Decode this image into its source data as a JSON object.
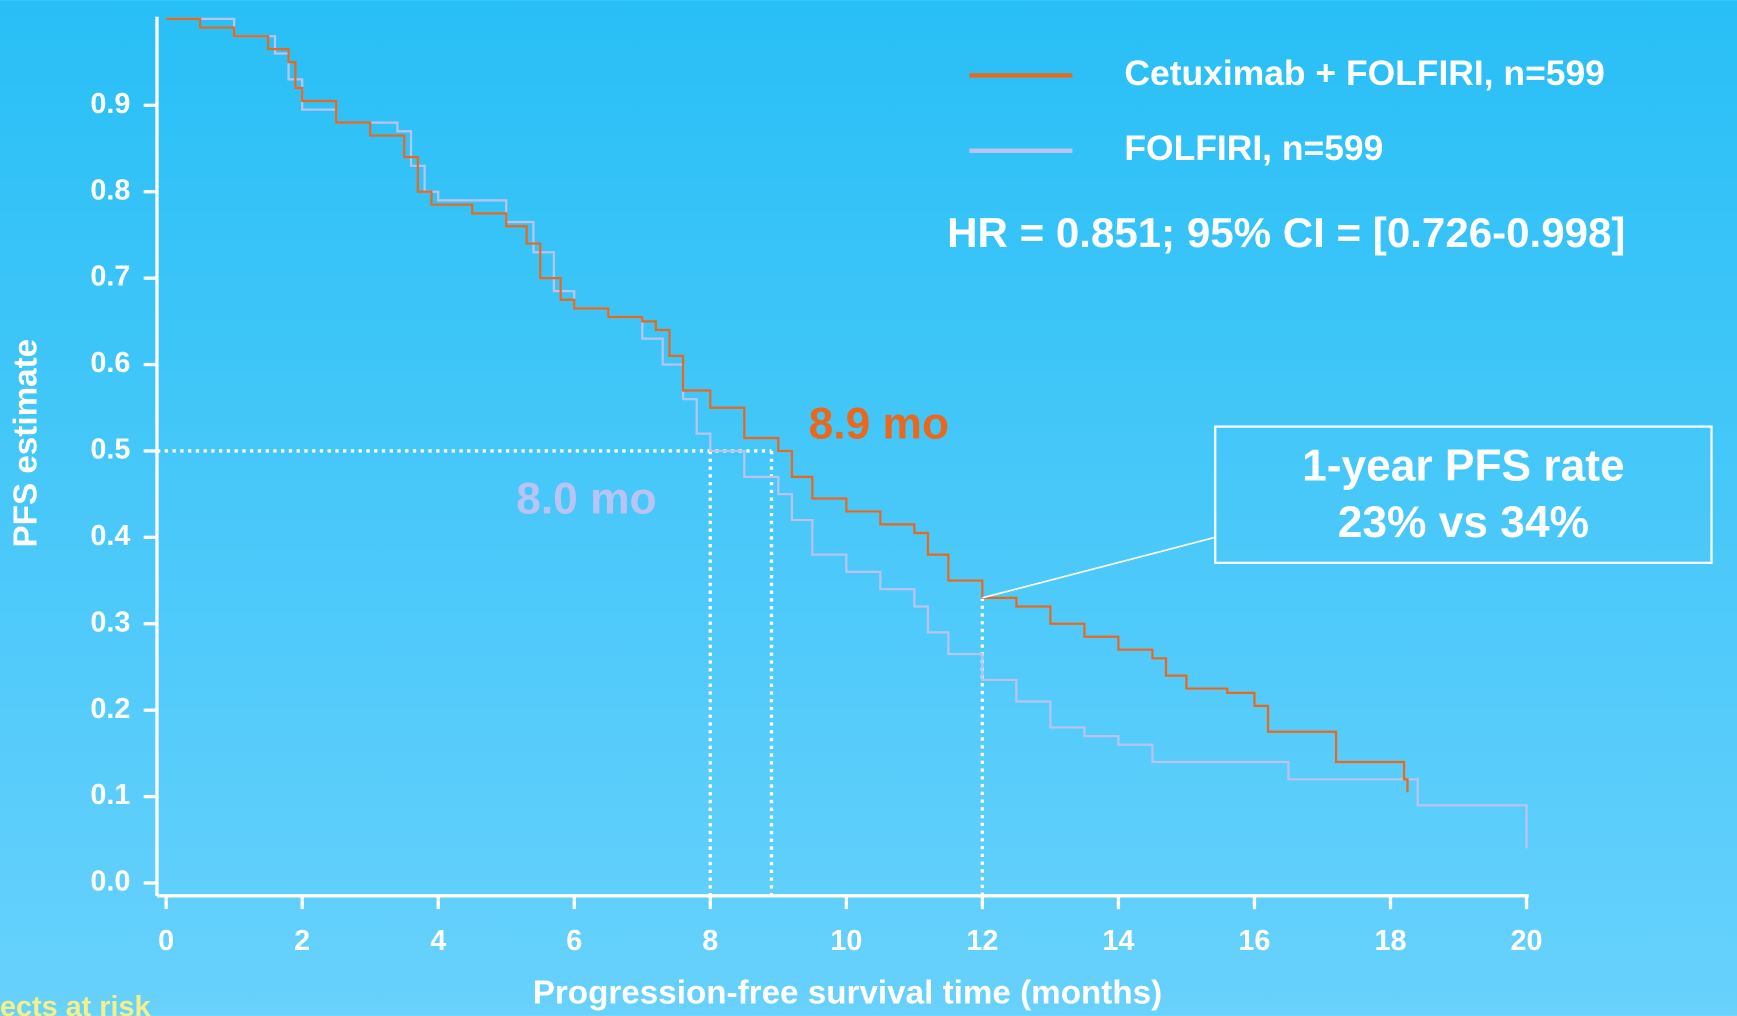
{
  "chart_data": {
    "type": "line",
    "step": true,
    "xlabel": "Progression-free survival time (months)",
    "ylabel": "PFS estimate",
    "xlim": [
      -0.2,
      20
    ],
    "ylim": [
      -0.02,
      1.0
    ],
    "xticks": [
      0,
      2,
      4,
      6,
      8,
      10,
      12,
      14,
      16,
      18,
      20
    ],
    "yticks": [
      {
        "value": 0,
        "label": "0.0"
      },
      0.1,
      0.2,
      0.3,
      0.4,
      0.5,
      0.6,
      0.7,
      0.8,
      0.9
    ],
    "legend": "upper right",
    "series": [
      {
        "name": "Cetuximab + FOLFIRI, n=599",
        "color": "#e8691e",
        "x": [
          0,
          0.5,
          1,
          1.5,
          1.8,
          1.9,
          2,
          2.5,
          3,
          3.5,
          3.7,
          3.9,
          4.5,
          5,
          5.3,
          5.5,
          5.8,
          6,
          6.5,
          7,
          7.2,
          7.4,
          7.6,
          8,
          8.5,
          9,
          9.2,
          9.5,
          10,
          10.5,
          11,
          11.2,
          11.5,
          12,
          12.5,
          13,
          13.5,
          14,
          14.5,
          14.7,
          15,
          15.6,
          16,
          16.2,
          17.2,
          18.2,
          18.25
        ],
        "values": [
          1.0,
          0.99,
          0.98,
          0.965,
          0.95,
          0.92,
          0.905,
          0.88,
          0.865,
          0.84,
          0.8,
          0.785,
          0.775,
          0.76,
          0.74,
          0.7,
          0.675,
          0.665,
          0.655,
          0.65,
          0.64,
          0.61,
          0.57,
          0.55,
          0.515,
          0.5,
          0.47,
          0.445,
          0.43,
          0.415,
          0.405,
          0.38,
          0.35,
          0.33,
          0.32,
          0.3,
          0.285,
          0.27,
          0.26,
          0.24,
          0.225,
          0.22,
          0.205,
          0.175,
          0.14,
          0.12,
          0.105
        ]
      },
      {
        "name": "FOLFIRI, n=599",
        "color": "#b9c4f5",
        "x": [
          0,
          1,
          1.6,
          1.8,
          2,
          2.5,
          3.4,
          3.6,
          3.8,
          4,
          5,
          5.4,
          5.7,
          6,
          6.5,
          7,
          7.3,
          7.6,
          7.8,
          8,
          8.5,
          9,
          9.2,
          9.5,
          10,
          10.5,
          11,
          11.2,
          11.5,
          12,
          12.5,
          13,
          13.5,
          14,
          14.5,
          16.5,
          18.4,
          20,
          20
        ],
        "values": [
          1.0,
          0.98,
          0.96,
          0.93,
          0.895,
          0.88,
          0.87,
          0.83,
          0.8,
          0.79,
          0.765,
          0.73,
          0.685,
          0.665,
          0.655,
          0.63,
          0.6,
          0.56,
          0.52,
          0.5,
          0.47,
          0.45,
          0.42,
          0.38,
          0.36,
          0.34,
          0.32,
          0.29,
          0.265,
          0.235,
          0.21,
          0.18,
          0.17,
          0.16,
          0.14,
          0.12,
          0.09,
          0.09,
          0.04
        ]
      }
    ],
    "hr_text": "HR = 0.851; 95% CI = [0.726-0.998]",
    "medians": [
      {
        "text": "8.9 mo",
        "x": 8.9,
        "y": 0.5,
        "color": "#e8691e"
      },
      {
        "text": "8.0 mo",
        "x": 8.0,
        "y": 0.5,
        "color": "#b9c4f5"
      }
    ],
    "box": {
      "lines": [
        "1-year PFS rate",
        "23% vs 34%"
      ],
      "x": 12,
      "y": 0.33
    },
    "footer": "ects at risk"
  }
}
